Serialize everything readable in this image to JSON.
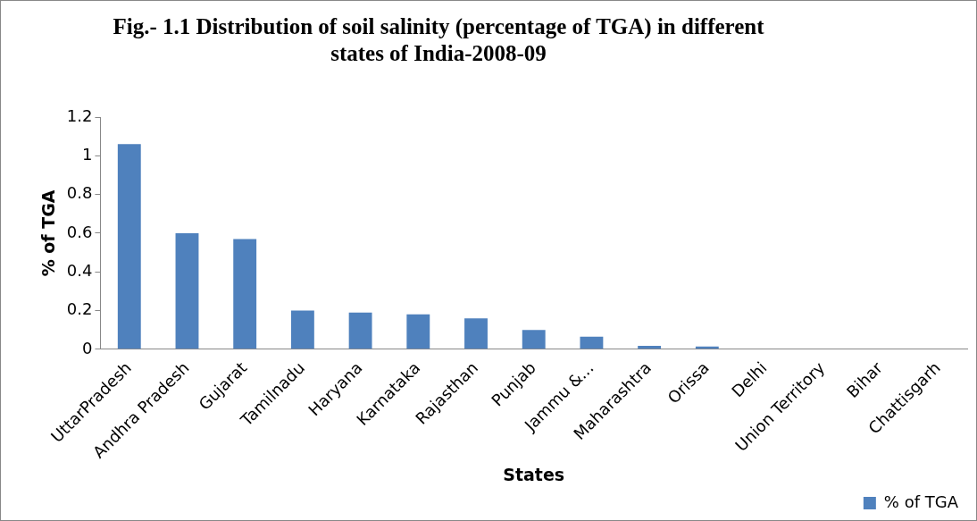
{
  "chart_data": {
    "type": "bar",
    "title": "Fig.- 1.1 Distribution of soil salinity (percentage of TGA) in different states of India-2008-09",
    "xlabel": "States",
    "ylabel": "% of TGA",
    "categories": [
      "UttarPradesh",
      "Andhra Pradesh",
      "Gujarat",
      "Tamilnadu",
      "Haryana",
      "Karnataka",
      "Rajasthan",
      "Punjab",
      "Jammu &...",
      "Maharashtra",
      "Orissa",
      "Delhi",
      "Union Territory",
      "Bihar",
      "Chattisgarh"
    ],
    "series": [
      {
        "name": "% of TGA",
        "color": "#4f81bd",
        "values": [
          1.06,
          0.6,
          0.57,
          0.2,
          0.19,
          0.18,
          0.16,
          0.1,
          0.065,
          0.018,
          0.014,
          0.003,
          0,
          0,
          0
        ]
      }
    ],
    "ylim": [
      0,
      1.2
    ],
    "yticks": [
      0,
      0.2,
      0.4,
      0.6,
      0.8,
      1,
      1.2
    ],
    "grid": false,
    "legend": "bottom"
  }
}
